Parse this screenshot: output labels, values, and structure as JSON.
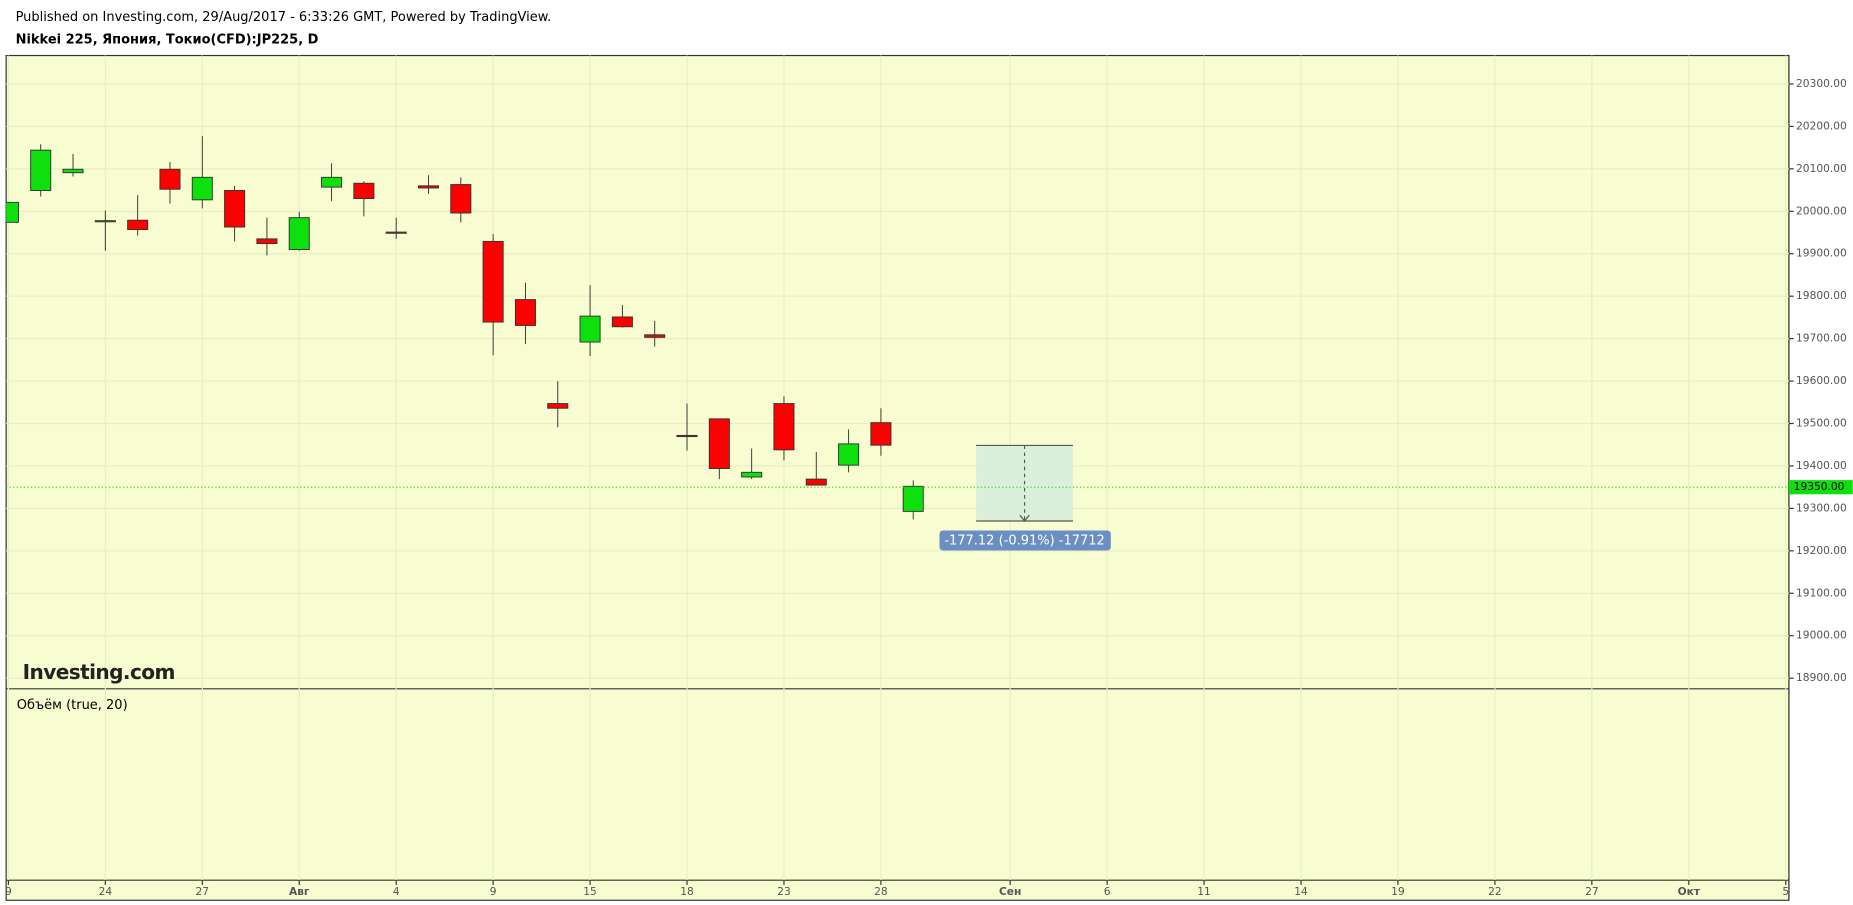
{
  "header": {
    "published": "Published on Investing.com, 29/Aug/2017 - 6:33:26 GMT, Powered by TradingView.",
    "symbol": "Nikkei 225, Япония, Токио(CFD):JP225, D"
  },
  "chart_data": {
    "type": "candlestick",
    "open": [
      19974,
      20049,
      20091,
      19977,
      19979,
      20099,
      20027,
      20049,
      19935,
      19910,
      20057,
      20066,
      19951,
      20060,
      20063,
      19929,
      19792,
      19547,
      19692,
      19751,
      19709,
      19472,
      19511,
      19374,
      19547,
      19369,
      19402,
      19502,
      19293
    ],
    "high": [
      20021,
      20158,
      20135,
      20002,
      20038,
      20116,
      20177,
      20060,
      19985,
      19999,
      20113,
      20071,
      19985,
      20085,
      20080,
      19946,
      19832,
      19600,
      19826,
      19779,
      19742,
      19547,
      19511,
      19441,
      19564,
      19433,
      19486,
      19536,
      19366
    ],
    "low": [
      19974,
      20035,
      20082,
      19907,
      19943,
      20018,
      20007,
      19929,
      19896,
      19907,
      20024,
      19988,
      19935,
      20041,
      19974,
      19661,
      19687,
      19491,
      19659,
      19726,
      19681,
      19436,
      19369,
      19369,
      19413,
      19355,
      19385,
      19424,
      19274
    ],
    "close": [
      20021,
      20144,
      20099,
      19978,
      19957,
      20052,
      20080,
      19963,
      19924,
      19985,
      20080,
      20030,
      19950,
      20055,
      19996,
      19739,
      19731,
      19536,
      19753,
      19728,
      19703,
      19471,
      19394,
      19385,
      19438,
      19355,
      19452,
      19449,
      19352
    ],
    "up_color": "#0ee00e",
    "down_color": "#ff0000",
    "xlim": [
      -0.07,
      55.1
    ],
    "xticks": [
      {
        "value": 0,
        "label": "9"
      },
      {
        "value": 3,
        "label": "24"
      },
      {
        "value": 6,
        "label": "27"
      },
      {
        "value": 9,
        "label": "Авг"
      },
      {
        "value": 12,
        "label": "4"
      },
      {
        "value": 15,
        "label": "9"
      },
      {
        "value": 18,
        "label": "15"
      },
      {
        "value": 21,
        "label": "18"
      },
      {
        "value": 24,
        "label": "23"
      },
      {
        "value": 27,
        "label": "28"
      },
      {
        "value": 31,
        "label": "Сен"
      },
      {
        "value": 34,
        "label": "6"
      },
      {
        "value": 37,
        "label": "11"
      },
      {
        "value": 40,
        "label": "14"
      },
      {
        "value": 43,
        "label": "19"
      },
      {
        "value": 46,
        "label": "22"
      },
      {
        "value": 49,
        "label": "27"
      },
      {
        "value": 52,
        "label": "Окт"
      },
      {
        "value": 55,
        "label": "5"
      }
    ],
    "ylim": [
      18875,
      20367
    ],
    "yticks": [
      {
        "value": 18900,
        "label": "18900.00"
      },
      {
        "value": 19000,
        "label": "19000.00"
      },
      {
        "value": 19100,
        "label": "19100.00"
      },
      {
        "value": 19200,
        "label": "19200.00"
      },
      {
        "value": 19300,
        "label": "19300.00"
      },
      {
        "value": 19400,
        "label": "19400.00"
      },
      {
        "value": 19500,
        "label": "19500.00"
      },
      {
        "value": 19600,
        "label": "19600.00"
      },
      {
        "value": 19700,
        "label": "19700.00"
      },
      {
        "value": 19800,
        "label": "19800.00"
      },
      {
        "value": 19900,
        "label": "19900.00"
      },
      {
        "value": 20000,
        "label": "20000.00"
      },
      {
        "value": 20100,
        "label": "20100.00"
      },
      {
        "value": 20200,
        "label": "20200.00"
      },
      {
        "value": 20300,
        "label": "20300.00"
      }
    ],
    "grid": true,
    "last_price": {
      "value": 19350,
      "label": "19350.00"
    },
    "measure_label": "-177.12 (-0.91%) -17712",
    "logo": "Investing.com",
    "volume_label": "Объём (true, 20)"
  }
}
